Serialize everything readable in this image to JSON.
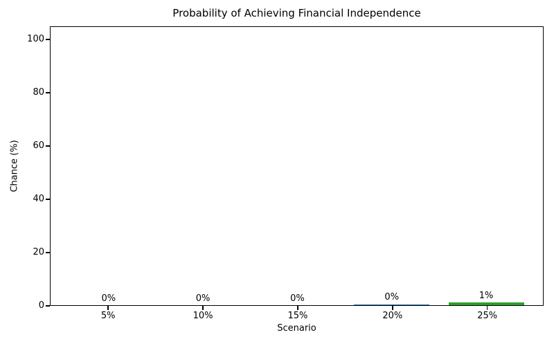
{
  "chart_data": {
    "type": "bar",
    "title": "Probability of Achieving Financial Independence",
    "xlabel": "Scenario",
    "ylabel": "Chance (%)",
    "categories": [
      "5%",
      "10%",
      "15%",
      "20%",
      "25%"
    ],
    "values": [
      0,
      0,
      0,
      0.3,
      1
    ],
    "bar_labels": [
      "0%",
      "0%",
      "0%",
      "0%",
      "1%"
    ],
    "bar_colors": [
      "#1f77b4",
      "#1f77b4",
      "#1f77b4",
      "#1f77b4",
      "#2ca02c"
    ],
    "ylim": [
      0,
      104.9
    ],
    "yticks": [
      0,
      20,
      40,
      60,
      80,
      100
    ],
    "grid": false,
    "legend_position": "none",
    "background_color": "#ffffff",
    "text_color": "#000000",
    "spine_color": "#000000"
  }
}
